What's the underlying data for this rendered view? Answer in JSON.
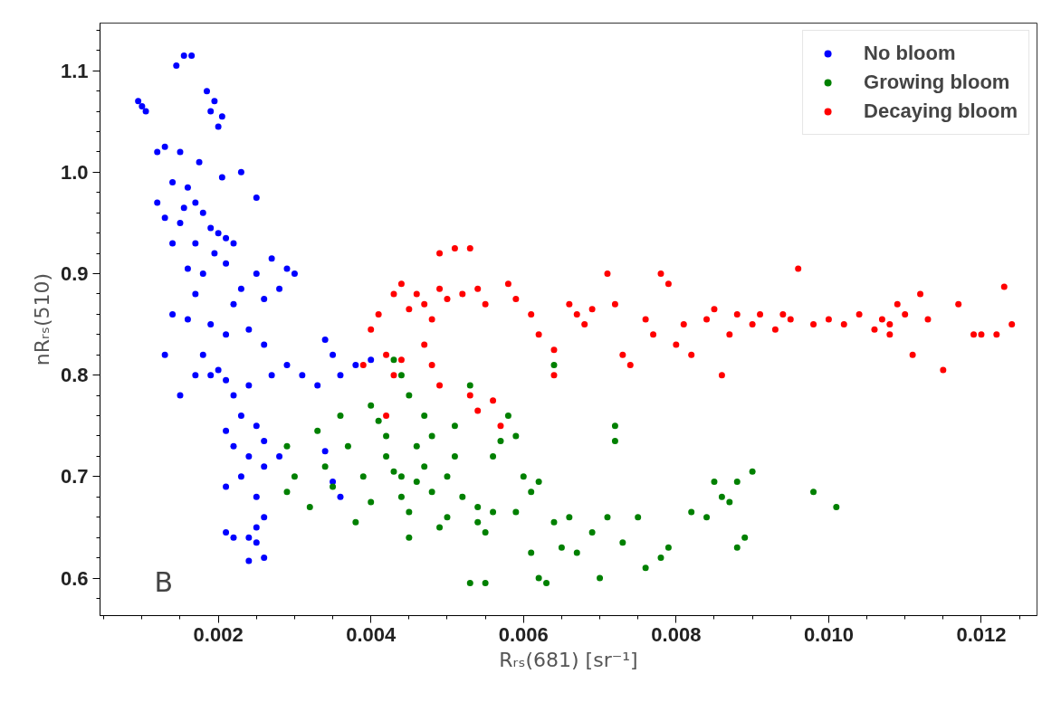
{
  "chart_data": {
    "type": "scatter",
    "xlabel": "Rᵣₛ(681) [sr⁻¹]",
    "ylabel": "nRᵣₛ(510)",
    "annotations": [
      "B"
    ],
    "xlim": [
      0.00045,
      0.01273
    ],
    "ylim": [
      0.563,
      1.147
    ],
    "xticks": [
      {
        "value": 0.002,
        "label": "0.002"
      },
      {
        "value": 0.004,
        "label": "0.004"
      },
      {
        "value": 0.006,
        "label": "0.006"
      },
      {
        "value": 0.008,
        "label": "0.008"
      },
      {
        "value": 0.01,
        "label": "0.010"
      },
      {
        "value": 0.012,
        "label": "0.012"
      }
    ],
    "yticks": [
      0.6,
      0.7,
      0.8,
      0.9,
      {
        "value": 1.0,
        "label": "1.0"
      },
      1.1
    ],
    "grid": false,
    "legend": "top right",
    "marker": "circle",
    "series": [
      {
        "name": "No bloom",
        "color": "#0000ff",
        "x": [
          0.00095,
          0.001,
          0.00105,
          0.00155,
          0.00165,
          0.00145,
          0.00185,
          0.00195,
          0.0019,
          0.00205,
          0.002,
          0.0013,
          0.0012,
          0.0015,
          0.00175,
          0.0023,
          0.0025,
          0.00205,
          0.0014,
          0.0016,
          0.00155,
          0.0017,
          0.0012,
          0.0013,
          0.0015,
          0.0018,
          0.0019,
          0.002,
          0.0021,
          0.0022,
          0.00195,
          0.0017,
          0.0014,
          0.0016,
          0.0018,
          0.0021,
          0.0025,
          0.0027,
          0.0029,
          0.003,
          0.0028,
          0.0026,
          0.0023,
          0.0022,
          0.0017,
          0.0014,
          0.0016,
          0.0019,
          0.0021,
          0.0024,
          0.0026,
          0.0013,
          0.0018,
          0.002,
          0.0019,
          0.0021,
          0.0017,
          0.0015,
          0.0022,
          0.0024,
          0.0027,
          0.0029,
          0.0031,
          0.0034,
          0.0035,
          0.0036,
          0.0033,
          0.0023,
          0.0025,
          0.0021,
          0.0022,
          0.0024,
          0.0026,
          0.0028,
          0.0026,
          0.0023,
          0.0021,
          0.0025,
          0.0026,
          0.0025,
          0.0024,
          0.0021,
          0.0022,
          0.0025,
          0.0026,
          0.0024,
          0.0038,
          0.0036,
          0.004,
          0.0034,
          0.0035
        ],
        "values": [
          1.07,
          1.065,
          1.06,
          1.115,
          1.115,
          1.105,
          1.08,
          1.07,
          1.06,
          1.055,
          1.045,
          1.025,
          1.02,
          1.02,
          1.01,
          1.0,
          0.975,
          0.995,
          0.99,
          0.985,
          0.965,
          0.97,
          0.97,
          0.955,
          0.95,
          0.96,
          0.945,
          0.94,
          0.935,
          0.93,
          0.92,
          0.93,
          0.93,
          0.905,
          0.9,
          0.91,
          0.9,
          0.915,
          0.905,
          0.9,
          0.885,
          0.875,
          0.885,
          0.87,
          0.88,
          0.86,
          0.855,
          0.85,
          0.84,
          0.845,
          0.83,
          0.82,
          0.82,
          0.805,
          0.8,
          0.795,
          0.8,
          0.78,
          0.78,
          0.79,
          0.8,
          0.81,
          0.8,
          0.835,
          0.82,
          0.8,
          0.79,
          0.76,
          0.75,
          0.745,
          0.73,
          0.72,
          0.735,
          0.72,
          0.71,
          0.7,
          0.69,
          0.68,
          0.66,
          0.65,
          0.64,
          0.645,
          0.64,
          0.635,
          0.62,
          0.617,
          0.81,
          0.68,
          0.815,
          0.725,
          0.695
        ]
      },
      {
        "name": "Growing bloom",
        "color": "#008000",
        "x": [
          0.0029,
          0.003,
          0.0029,
          0.0032,
          0.0033,
          0.0034,
          0.0035,
          0.0036,
          0.0037,
          0.0038,
          0.0039,
          0.004,
          0.004,
          0.0041,
          0.0042,
          0.0042,
          0.0043,
          0.0044,
          0.0044,
          0.0045,
          0.0045,
          0.0046,
          0.0047,
          0.0046,
          0.0047,
          0.0048,
          0.0048,
          0.0049,
          0.005,
          0.005,
          0.0051,
          0.0051,
          0.0052,
          0.0053,
          0.0054,
          0.0054,
          0.0055,
          0.0056,
          0.0056,
          0.0057,
          0.0058,
          0.0059,
          0.006,
          0.0059,
          0.0061,
          0.0062,
          0.0061,
          0.0062,
          0.0063,
          0.0064,
          0.0065,
          0.0064,
          0.0066,
          0.0067,
          0.0069,
          0.007,
          0.0071,
          0.0072,
          0.0072,
          0.0073,
          0.0075,
          0.0076,
          0.0078,
          0.0079,
          0.0082,
          0.0084,
          0.0085,
          0.0086,
          0.0087,
          0.0088,
          0.0088,
          0.0089,
          0.009,
          0.0098,
          0.0101,
          0.0053,
          0.0055,
          0.0043,
          0.0044,
          0.0045
        ],
        "values": [
          0.73,
          0.7,
          0.685,
          0.67,
          0.745,
          0.71,
          0.69,
          0.76,
          0.73,
          0.655,
          0.7,
          0.675,
          0.77,
          0.755,
          0.74,
          0.72,
          0.705,
          0.7,
          0.68,
          0.665,
          0.64,
          0.695,
          0.71,
          0.73,
          0.76,
          0.685,
          0.74,
          0.65,
          0.66,
          0.7,
          0.72,
          0.75,
          0.68,
          0.79,
          0.67,
          0.655,
          0.645,
          0.665,
          0.72,
          0.735,
          0.76,
          0.74,
          0.7,
          0.665,
          0.685,
          0.695,
          0.625,
          0.6,
          0.595,
          0.655,
          0.63,
          0.81,
          0.66,
          0.625,
          0.645,
          0.6,
          0.66,
          0.75,
          0.735,
          0.635,
          0.66,
          0.61,
          0.62,
          0.63,
          0.665,
          0.66,
          0.695,
          0.68,
          0.675,
          0.695,
          0.63,
          0.64,
          0.705,
          0.685,
          0.67,
          0.595,
          0.595,
          0.815,
          0.8,
          0.78
        ]
      },
      {
        "name": "Decaying bloom",
        "color": "#ff0000",
        "x": [
          0.0039,
          0.004,
          0.0041,
          0.0042,
          0.0043,
          0.0044,
          0.0045,
          0.0046,
          0.0047,
          0.0048,
          0.0049,
          0.0049,
          0.0051,
          0.0053,
          0.005,
          0.0052,
          0.0054,
          0.0055,
          0.0047,
          0.0048,
          0.0049,
          0.0044,
          0.0043,
          0.0042,
          0.0053,
          0.0054,
          0.0056,
          0.0057,
          0.0058,
          0.0059,
          0.0061,
          0.0062,
          0.0064,
          0.0064,
          0.0066,
          0.0067,
          0.0068,
          0.0069,
          0.0071,
          0.0072,
          0.0073,
          0.0074,
          0.0076,
          0.0077,
          0.0078,
          0.0079,
          0.008,
          0.0081,
          0.0082,
          0.0084,
          0.0085,
          0.0086,
          0.0087,
          0.0088,
          0.009,
          0.0091,
          0.0093,
          0.0094,
          0.0095,
          0.0096,
          0.0098,
          0.01,
          0.0102,
          0.0104,
          0.0106,
          0.0107,
          0.0108,
          0.0108,
          0.0109,
          0.011,
          0.0111,
          0.0112,
          0.0113,
          0.0115,
          0.0117,
          0.0119,
          0.012,
          0.0122,
          0.0123,
          0.0124
        ],
        "values": [
          0.81,
          0.845,
          0.86,
          0.82,
          0.88,
          0.89,
          0.865,
          0.88,
          0.87,
          0.855,
          0.885,
          0.92,
          0.925,
          0.925,
          0.875,
          0.88,
          0.885,
          0.87,
          0.83,
          0.81,
          0.79,
          0.815,
          0.8,
          0.76,
          0.78,
          0.765,
          0.775,
          0.75,
          0.89,
          0.875,
          0.86,
          0.84,
          0.8,
          0.825,
          0.87,
          0.86,
          0.85,
          0.865,
          0.9,
          0.87,
          0.82,
          0.81,
          0.855,
          0.84,
          0.9,
          0.89,
          0.83,
          0.85,
          0.82,
          0.855,
          0.865,
          0.8,
          0.84,
          0.86,
          0.85,
          0.86,
          0.845,
          0.86,
          0.855,
          0.905,
          0.85,
          0.855,
          0.85,
          0.86,
          0.845,
          0.855,
          0.85,
          0.84,
          0.87,
          0.86,
          0.82,
          0.88,
          0.855,
          0.805,
          0.87,
          0.84,
          0.84,
          0.84,
          0.887,
          0.85
        ]
      }
    ]
  }
}
